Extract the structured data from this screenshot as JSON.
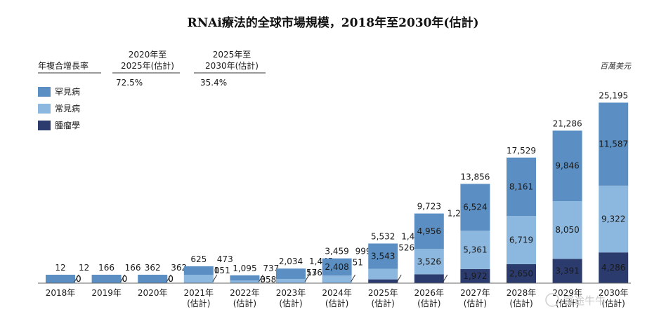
{
  "chart_data": {
    "type": "bar",
    "stacked": true,
    "title": "RNAi療法的全球市場規模，2018年至2030年(估計)",
    "unit_label": "百萬美元",
    "categories": [
      [
        "2018年"
      ],
      [
        "2019年"
      ],
      [
        "2020年"
      ],
      [
        "2021年",
        "(估計)"
      ],
      [
        "2022年",
        "(估計)"
      ],
      [
        "2023年",
        "(估計)"
      ],
      [
        "2024年",
        "(估計)"
      ],
      [
        "2025年",
        "(估計)"
      ],
      [
        "2026年",
        "(估計)"
      ],
      [
        "2027年",
        "(估計)"
      ],
      [
        "2028年",
        "(估計)"
      ],
      [
        "2029年",
        "(估計)"
      ],
      [
        "2030年",
        "(估計)"
      ]
    ],
    "totals": [
      "12",
      "166",
      "362",
      "625",
      "1,095",
      "2,034",
      "3,459",
      "5,532",
      "9,723",
      "13,856",
      "17,529",
      "21,286",
      "25,195"
    ],
    "total_values": [
      12,
      166,
      362,
      625,
      1095,
      2034,
      3459,
      5532,
      9723,
      13856,
      17529,
      21286,
      25195
    ],
    "series": [
      {
        "name": "腫瘤學",
        "color": "#2b3b6e",
        "values": [
          0,
          0,
          0,
          0,
          0,
          13,
          51,
          526,
          1241,
          1972,
          2650,
          3391,
          4286
        ],
        "labels": [
          "0",
          "0",
          "0",
          "0",
          "0",
          "13",
          "51",
          "526",
          "1,241",
          "1,972",
          "2,650",
          "3,391",
          "4,286"
        ]
      },
      {
        "name": "常見病",
        "color": "#8cb8df",
        "values": [
          0,
          0,
          0,
          151,
          358,
          576,
          999,
          1462,
          3526,
          5361,
          6719,
          8050,
          9322
        ],
        "labels": [
          "0",
          "0",
          "0",
          "151",
          "358",
          "576",
          "999",
          "1,462",
          "3,526",
          "5,361",
          "6,719",
          "8,050",
          "9,322"
        ]
      },
      {
        "name": "罕見病",
        "color": "#5b8fc3",
        "values": [
          12,
          166,
          362,
          473,
          737,
          1445,
          2408,
          3543,
          4956,
          6524,
          8161,
          9846,
          11587
        ],
        "labels": [
          "12",
          "166",
          "362",
          "473",
          "737",
          "1,445",
          "2,408",
          "3,543",
          "4,956",
          "6,524",
          "8,161",
          "9,846",
          "11,587"
        ]
      }
    ],
    "legend": [
      {
        "name": "罕見病",
        "color": "#5b8fc3"
      },
      {
        "name": "常見病",
        "color": "#8cb8df"
      },
      {
        "name": "腫瘤學",
        "color": "#2b3b6e"
      }
    ],
    "ylim": [
      0,
      27000
    ],
    "grid": false,
    "legend_position": "left",
    "cagr_table": {
      "header_label": "年複合增長率",
      "columns": [
        {
          "header": [
            "2020年至",
            "2025年(估計)"
          ],
          "value": "72.5%"
        },
        {
          "header": [
            "2025年至",
            "2030年(估計)"
          ],
          "value": "35.4%"
        }
      ]
    },
    "watermark": "富途牛牛"
  }
}
